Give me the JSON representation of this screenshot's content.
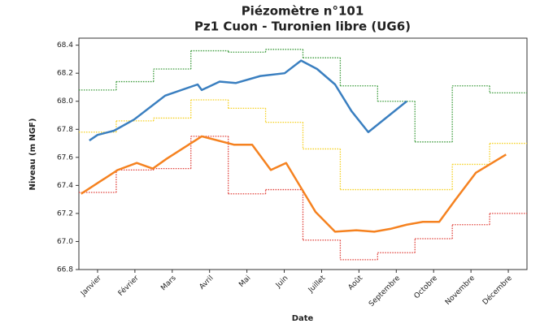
{
  "chart_data": {
    "type": "line",
    "title": [
      "Piézomètre n°101",
      "Pz1 Cuon - Turonien libre (UG6)"
    ],
    "xlabel": "Date",
    "ylabel": "Niveau (m NGF)",
    "xlim": [
      0.5,
      12.5
    ],
    "xticks": [
      {
        "value": 1,
        "label": "Janvier"
      },
      {
        "value": 2,
        "label": "Février"
      },
      {
        "value": 3,
        "label": "Mars"
      },
      {
        "value": 4,
        "label": "Avril"
      },
      {
        "value": 5,
        "label": "Mai"
      },
      {
        "value": 6,
        "label": "Juin"
      },
      {
        "value": 7,
        "label": "Juillet"
      },
      {
        "value": 8,
        "label": "Août"
      },
      {
        "value": 9,
        "label": "Septembre"
      },
      {
        "value": 10,
        "label": "Octobre"
      },
      {
        "value": 11,
        "label": "Novembre"
      },
      {
        "value": 12,
        "label": "Décembre"
      }
    ],
    "ylim": [
      66.8,
      68.45
    ],
    "yticks": [
      66.8,
      {
        "value": 67,
        "label": "67.0"
      },
      67.2,
      67.4,
      67.6,
      67.8,
      {
        "value": 68,
        "label": "68.0"
      },
      68.2,
      68.4
    ],
    "series": [
      {
        "color": "#3a7fc0",
        "style": "solid",
        "x": [
          0.78,
          1.0,
          1.44,
          1.98,
          2.81,
          3.68,
          3.79,
          4.27,
          4.7,
          5.36,
          6.01,
          6.45,
          6.88,
          7.36,
          7.8,
          8.25,
          9.28
        ],
        "values": [
          67.72,
          67.76,
          67.79,
          67.87,
          68.04,
          68.12,
          68.08,
          68.14,
          68.13,
          68.18,
          68.2,
          68.29,
          68.23,
          68.12,
          67.93,
          67.78,
          68.0
        ]
      },
      {
        "color": "#f58220",
        "style": "solid",
        "x": [
          0.56,
          1.54,
          2.05,
          2.48,
          2.85,
          3.79,
          4.66,
          5.14,
          5.64,
          6.05,
          6.84,
          7.36,
          7.93,
          8.41,
          8.84,
          9.28,
          9.71,
          10.15,
          10.59,
          11.13,
          11.94
        ],
        "values": [
          67.34,
          67.51,
          67.56,
          67.52,
          67.59,
          67.75,
          67.69,
          67.69,
          67.51,
          67.56,
          67.21,
          67.07,
          67.08,
          67.07,
          67.09,
          67.12,
          67.14,
          67.14,
          67.3,
          67.49,
          67.62
        ]
      },
      {
        "color": "#3a9a3a",
        "style": "dotted",
        "values": [
          68.08,
          68.14,
          68.23,
          68.36,
          68.35,
          68.37,
          68.31,
          68.11,
          68.0,
          67.71,
          68.11,
          68.06
        ]
      },
      {
        "color": "#f5d020",
        "style": "dotted",
        "values": [
          67.78,
          67.86,
          67.88,
          68.01,
          67.95,
          67.85,
          67.66,
          67.37,
          67.37,
          67.37,
          67.55,
          67.7
        ]
      },
      {
        "color": "#e0403a",
        "style": "dotted",
        "values": [
          67.35,
          67.51,
          67.52,
          67.75,
          67.34,
          67.37,
          67.01,
          66.87,
          66.92,
          67.02,
          67.12,
          67.2
        ]
      }
    ]
  }
}
